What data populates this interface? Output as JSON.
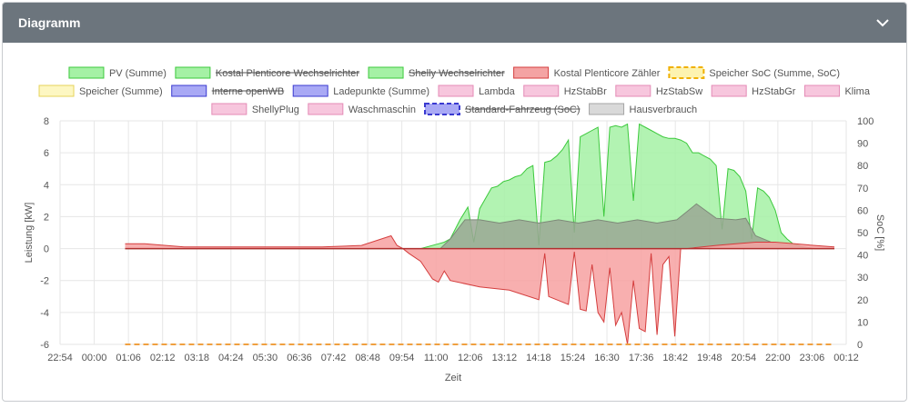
{
  "card": {
    "title": "Diagramm",
    "collapse_icon": "chevron-down-icon"
  },
  "chart_data": {
    "type": "area",
    "xlabel": "Zeit",
    "ylabel_left": "Leistung [kW]",
    "ylabel_right": "SoC [%]",
    "y_left_range": [
      -6,
      8
    ],
    "y_left_ticks": [
      "8",
      "6",
      "4",
      "2",
      "0",
      "-2",
      "-4",
      "-6"
    ],
    "y_right_range": [
      0,
      100
    ],
    "y_right_ticks": [
      "100",
      "90",
      "80",
      "70",
      "60",
      "50",
      "40",
      "30",
      "20",
      "10",
      "0"
    ],
    "x_range_minutes": [
      -66,
      732
    ],
    "x_ticks": [
      "22:54",
      "00:00",
      "01:06",
      "02:12",
      "03:18",
      "04:24",
      "05:30",
      "06:36",
      "07:42",
      "08:48",
      "09:54",
      "11:00",
      "12:06",
      "13:12",
      "14:18",
      "15:24",
      "16:30",
      "17:36",
      "18:42",
      "19:48",
      "20:54",
      "22:00",
      "23:06",
      "00:12"
    ],
    "grid": true,
    "legend_position": "top",
    "legend": [
      {
        "label": "PV (Summe)",
        "fill": "#a5f1a5",
        "stroke": "#3cc93c",
        "dashed": false,
        "hidden": false
      },
      {
        "label": "Kostal Plenticore Wechselrichter",
        "fill": "#a5f1a5",
        "stroke": "#3cc93c",
        "dashed": false,
        "hidden": true
      },
      {
        "label": "Shelly Wechselrichter",
        "fill": "#a5f1a5",
        "stroke": "#3cc93c",
        "dashed": false,
        "hidden": true
      },
      {
        "label": "Kostal Plenticore Zähler",
        "fill": "#f4a3a3",
        "stroke": "#d43d3d",
        "dashed": false,
        "hidden": false
      },
      {
        "label": "Speicher SoC (Summe, SoC)",
        "fill": "#fdf3b0",
        "stroke": "#f0b000",
        "dashed": true,
        "hidden": false
      },
      {
        "label": "Speicher (Summe)",
        "fill": "#fdf7c2",
        "stroke": "#e6d35a",
        "dashed": false,
        "hidden": false
      },
      {
        "label": "Interne openWB",
        "fill": "#a9a9f5",
        "stroke": "#3a3ad0",
        "dashed": false,
        "hidden": true
      },
      {
        "label": "Ladepunkte (Summe)",
        "fill": "#a9a9f5",
        "stroke": "#3a3ad0",
        "dashed": false,
        "hidden": false
      },
      {
        "label": "Lambda",
        "fill": "#f7c6dd",
        "stroke": "#e48bb6",
        "dashed": false,
        "hidden": false
      },
      {
        "label": "HzStabBr",
        "fill": "#f7c6dd",
        "stroke": "#e48bb6",
        "dashed": false,
        "hidden": false
      },
      {
        "label": "HzStabSw",
        "fill": "#f7c6dd",
        "stroke": "#e48bb6",
        "dashed": false,
        "hidden": false
      },
      {
        "label": "HzStabGr",
        "fill": "#f7c6dd",
        "stroke": "#e48bb6",
        "dashed": false,
        "hidden": false
      },
      {
        "label": "Klima",
        "fill": "#f7c6dd",
        "stroke": "#e48bb6",
        "dashed": false,
        "hidden": false
      },
      {
        "label": "ShellyPlug",
        "fill": "#f7c6dd",
        "stroke": "#e48bb6",
        "dashed": false,
        "hidden": false
      },
      {
        "label": "Waschmaschin",
        "fill": "#f7c6dd",
        "stroke": "#e48bb6",
        "dashed": false,
        "hidden": false
      },
      {
        "label": "Standard-Fahrzeug (SoC)",
        "fill": "#a9a9f5",
        "stroke": "#3a3ad0",
        "dashed": true,
        "hidden": true
      },
      {
        "label": "Hausverbrauch",
        "fill": "#d9d9d9",
        "stroke": "#a6a6a6",
        "dashed": false,
        "hidden": false
      }
    ],
    "series": [
      {
        "name": "PV (Summe)",
        "axis": "left",
        "fill": "#a5f1a5",
        "stroke": "#3cc93c",
        "x": [
          0,
          300,
          318,
          324,
          330,
          340,
          348,
          354,
          360,
          372,
          378,
          384,
          390,
          396,
          402,
          408,
          414,
          420,
          426,
          432,
          438,
          444,
          450,
          456,
          462,
          468,
          474,
          480,
          486,
          492,
          498,
          504,
          510,
          516,
          522,
          528,
          534,
          540,
          546,
          552,
          558,
          564,
          570,
          576,
          582,
          588,
          594,
          600,
          606,
          612,
          618,
          624,
          630,
          636,
          642,
          648,
          654,
          660,
          666,
          672,
          678,
          684,
          690,
          696,
          702,
          708,
          714,
          720
        ],
        "y": [
          0,
          0,
          0.3,
          0.4,
          0.6,
          1.8,
          2.6,
          0.4,
          2.5,
          3.8,
          3.9,
          4.2,
          4.3,
          4.5,
          4.6,
          5.0,
          5.2,
          0.2,
          5.4,
          5.5,
          5.8,
          6.2,
          6.8,
          1.0,
          7.0,
          7.2,
          7.4,
          7.6,
          2.0,
          7.6,
          7.7,
          7.6,
          7.8,
          3.0,
          7.8,
          7.6,
          7.4,
          7.2,
          7.0,
          6.9,
          6.9,
          6.8,
          6.6,
          6.0,
          6.0,
          5.8,
          5.6,
          5.2,
          1.2,
          5.0,
          4.9,
          4.5,
          3.6,
          0.6,
          3.8,
          3.6,
          3.2,
          2.4,
          1.0,
          0.6,
          0.3,
          0.2,
          0,
          0,
          0,
          0,
          0,
          0
        ]
      },
      {
        "name": "Hausverbrauch",
        "axis": "left",
        "fill": "#9aa794",
        "stroke": "#7d8a78",
        "x": [
          0,
          320,
          330,
          345,
          360,
          380,
          400,
          420,
          440,
          460,
          480,
          500,
          520,
          540,
          560,
          580,
          600,
          620,
          630,
          640,
          660,
          680,
          700,
          720
        ],
        "y": [
          0,
          0,
          0.6,
          1.8,
          1.8,
          1.6,
          1.8,
          1.6,
          1.8,
          1.6,
          1.8,
          1.6,
          1.8,
          1.6,
          1.8,
          2.8,
          1.9,
          1.8,
          1.9,
          0.8,
          0.3,
          0.2,
          0,
          0
        ]
      },
      {
        "name": "Kostal Plenticore Zähler",
        "axis": "left",
        "fill": "#f7a1a1",
        "stroke": "#d43d3d",
        "x": [
          0,
          20,
          60,
          120,
          160,
          200,
          240,
          270,
          276,
          282,
          288,
          300,
          312,
          318,
          324,
          330,
          360,
          390,
          420,
          426,
          430,
          450,
          456,
          462,
          468,
          474,
          480,
          486,
          492,
          498,
          504,
          510,
          516,
          522,
          528,
          534,
          540,
          546,
          552,
          558,
          564,
          570,
          600,
          620,
          640,
          660,
          680,
          700,
          720
        ],
        "y": [
          0.3,
          0.3,
          0.1,
          0.1,
          0.1,
          0.1,
          0.2,
          0.8,
          0.2,
          0,
          -0.3,
          -0.8,
          -1.9,
          -2.1,
          -1.4,
          -2.0,
          -2.4,
          -2.6,
          -3.2,
          -0.3,
          -3.0,
          -3.5,
          -0.2,
          -3.8,
          -3.9,
          -1.0,
          -4.0,
          -4.6,
          -1.2,
          -4.8,
          -4.0,
          -6.0,
          -2.0,
          -5.0,
          -5.2,
          -0.3,
          -5.4,
          -1.0,
          -0.5,
          -5.5,
          0,
          0,
          0.2,
          0.3,
          0.4,
          0.4,
          0.3,
          0.2,
          0.1
        ]
      },
      {
        "name": "Speicher SoC (Summe, SoC)",
        "axis": "right",
        "stroke": "#f0a040",
        "dashed": true,
        "x": [
          0,
          720
        ],
        "y": [
          0,
          0
        ]
      }
    ]
  }
}
